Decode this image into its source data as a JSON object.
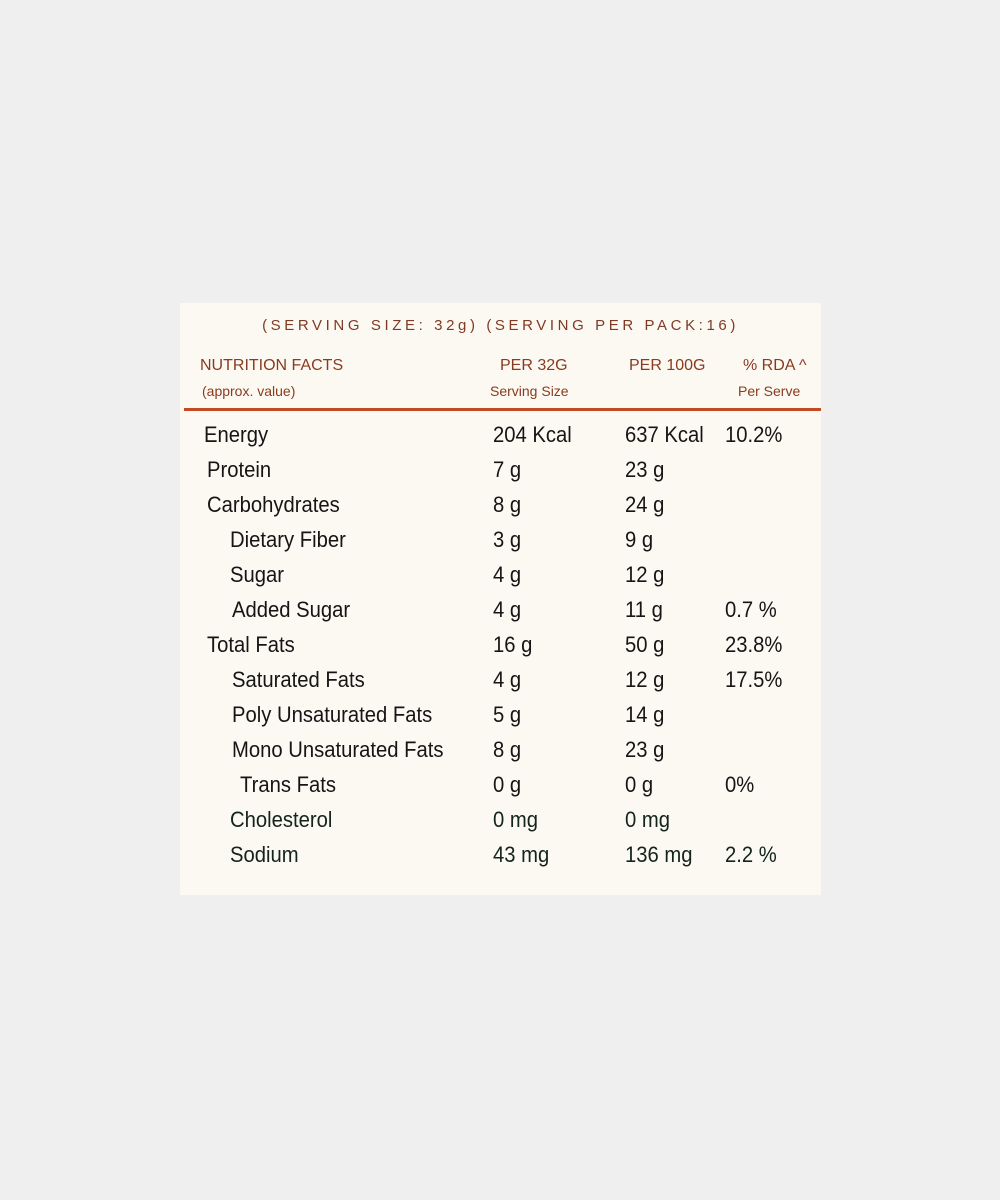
{
  "serving_line": "(SERVING SIZE: 32g) (SERVING PER PACK:16)",
  "header": {
    "col1_title": "NUTRITION FACTS",
    "col1_sub": "(approx. value)",
    "col2_title": "PER 32G",
    "col2_sub": "Serving Size",
    "col3_title": "PER 100G",
    "col4_title": "% RDA ^",
    "col4_sub": "Per Serve"
  },
  "rows": [
    {
      "nutrient": "Energy",
      "per_serving": "204 Kcal",
      "per_100g": "637 Kcal",
      "rda": "10.2%",
      "indent": 0
    },
    {
      "nutrient": "Protein",
      "per_serving": "7 g",
      "per_100g": "23 g",
      "rda": "",
      "indent": 1
    },
    {
      "nutrient": "Carbohydrates",
      "per_serving": "8 g",
      "per_100g": "24 g",
      "rda": "",
      "indent": 1
    },
    {
      "nutrient": "Dietary Fiber",
      "per_serving": "3 g",
      "per_100g": "9 g",
      "rda": "",
      "indent": 2
    },
    {
      "nutrient": "Sugar",
      "per_serving": "4 g",
      "per_100g": "12 g",
      "rda": "",
      "indent": 2
    },
    {
      "nutrient": "Added Sugar",
      "per_serving": "4 g",
      "per_100g": "11 g",
      "rda": "0.7 %",
      "indent": 3
    },
    {
      "nutrient": "Total Fats",
      "per_serving": "16 g",
      "per_100g": "50 g",
      "rda": "23.8%",
      "indent": 1
    },
    {
      "nutrient": "Saturated Fats",
      "per_serving": "4 g",
      "per_100g": "12 g",
      "rda": "17.5%",
      "indent": 3
    },
    {
      "nutrient": "Poly Unsaturated Fats",
      "per_serving": "5 g",
      "per_100g": "14 g",
      "rda": "",
      "indent": 3
    },
    {
      "nutrient": "Mono Unsaturated Fats",
      "per_serving": "8 g",
      "per_100g": "23 g",
      "rda": "",
      "indent": 3
    },
    {
      "nutrient": "Trans Fats",
      "per_serving": "0 g",
      "per_100g": "0 g",
      "rda": "0%",
      "indent": 4
    },
    {
      "nutrient": "Cholesterol",
      "per_serving": "0 mg",
      "per_100g": "0 mg",
      "rda": "",
      "indent": 2
    },
    {
      "nutrient": "Sodium",
      "per_serving": "43 mg",
      "per_100g": "136 mg",
      "rda": "2.2 %",
      "indent": 2
    }
  ],
  "colors": {
    "header_text": "#8a3a1e",
    "rule": "#c44a24",
    "card": "#fcf9f3",
    "background": "#efefef"
  }
}
